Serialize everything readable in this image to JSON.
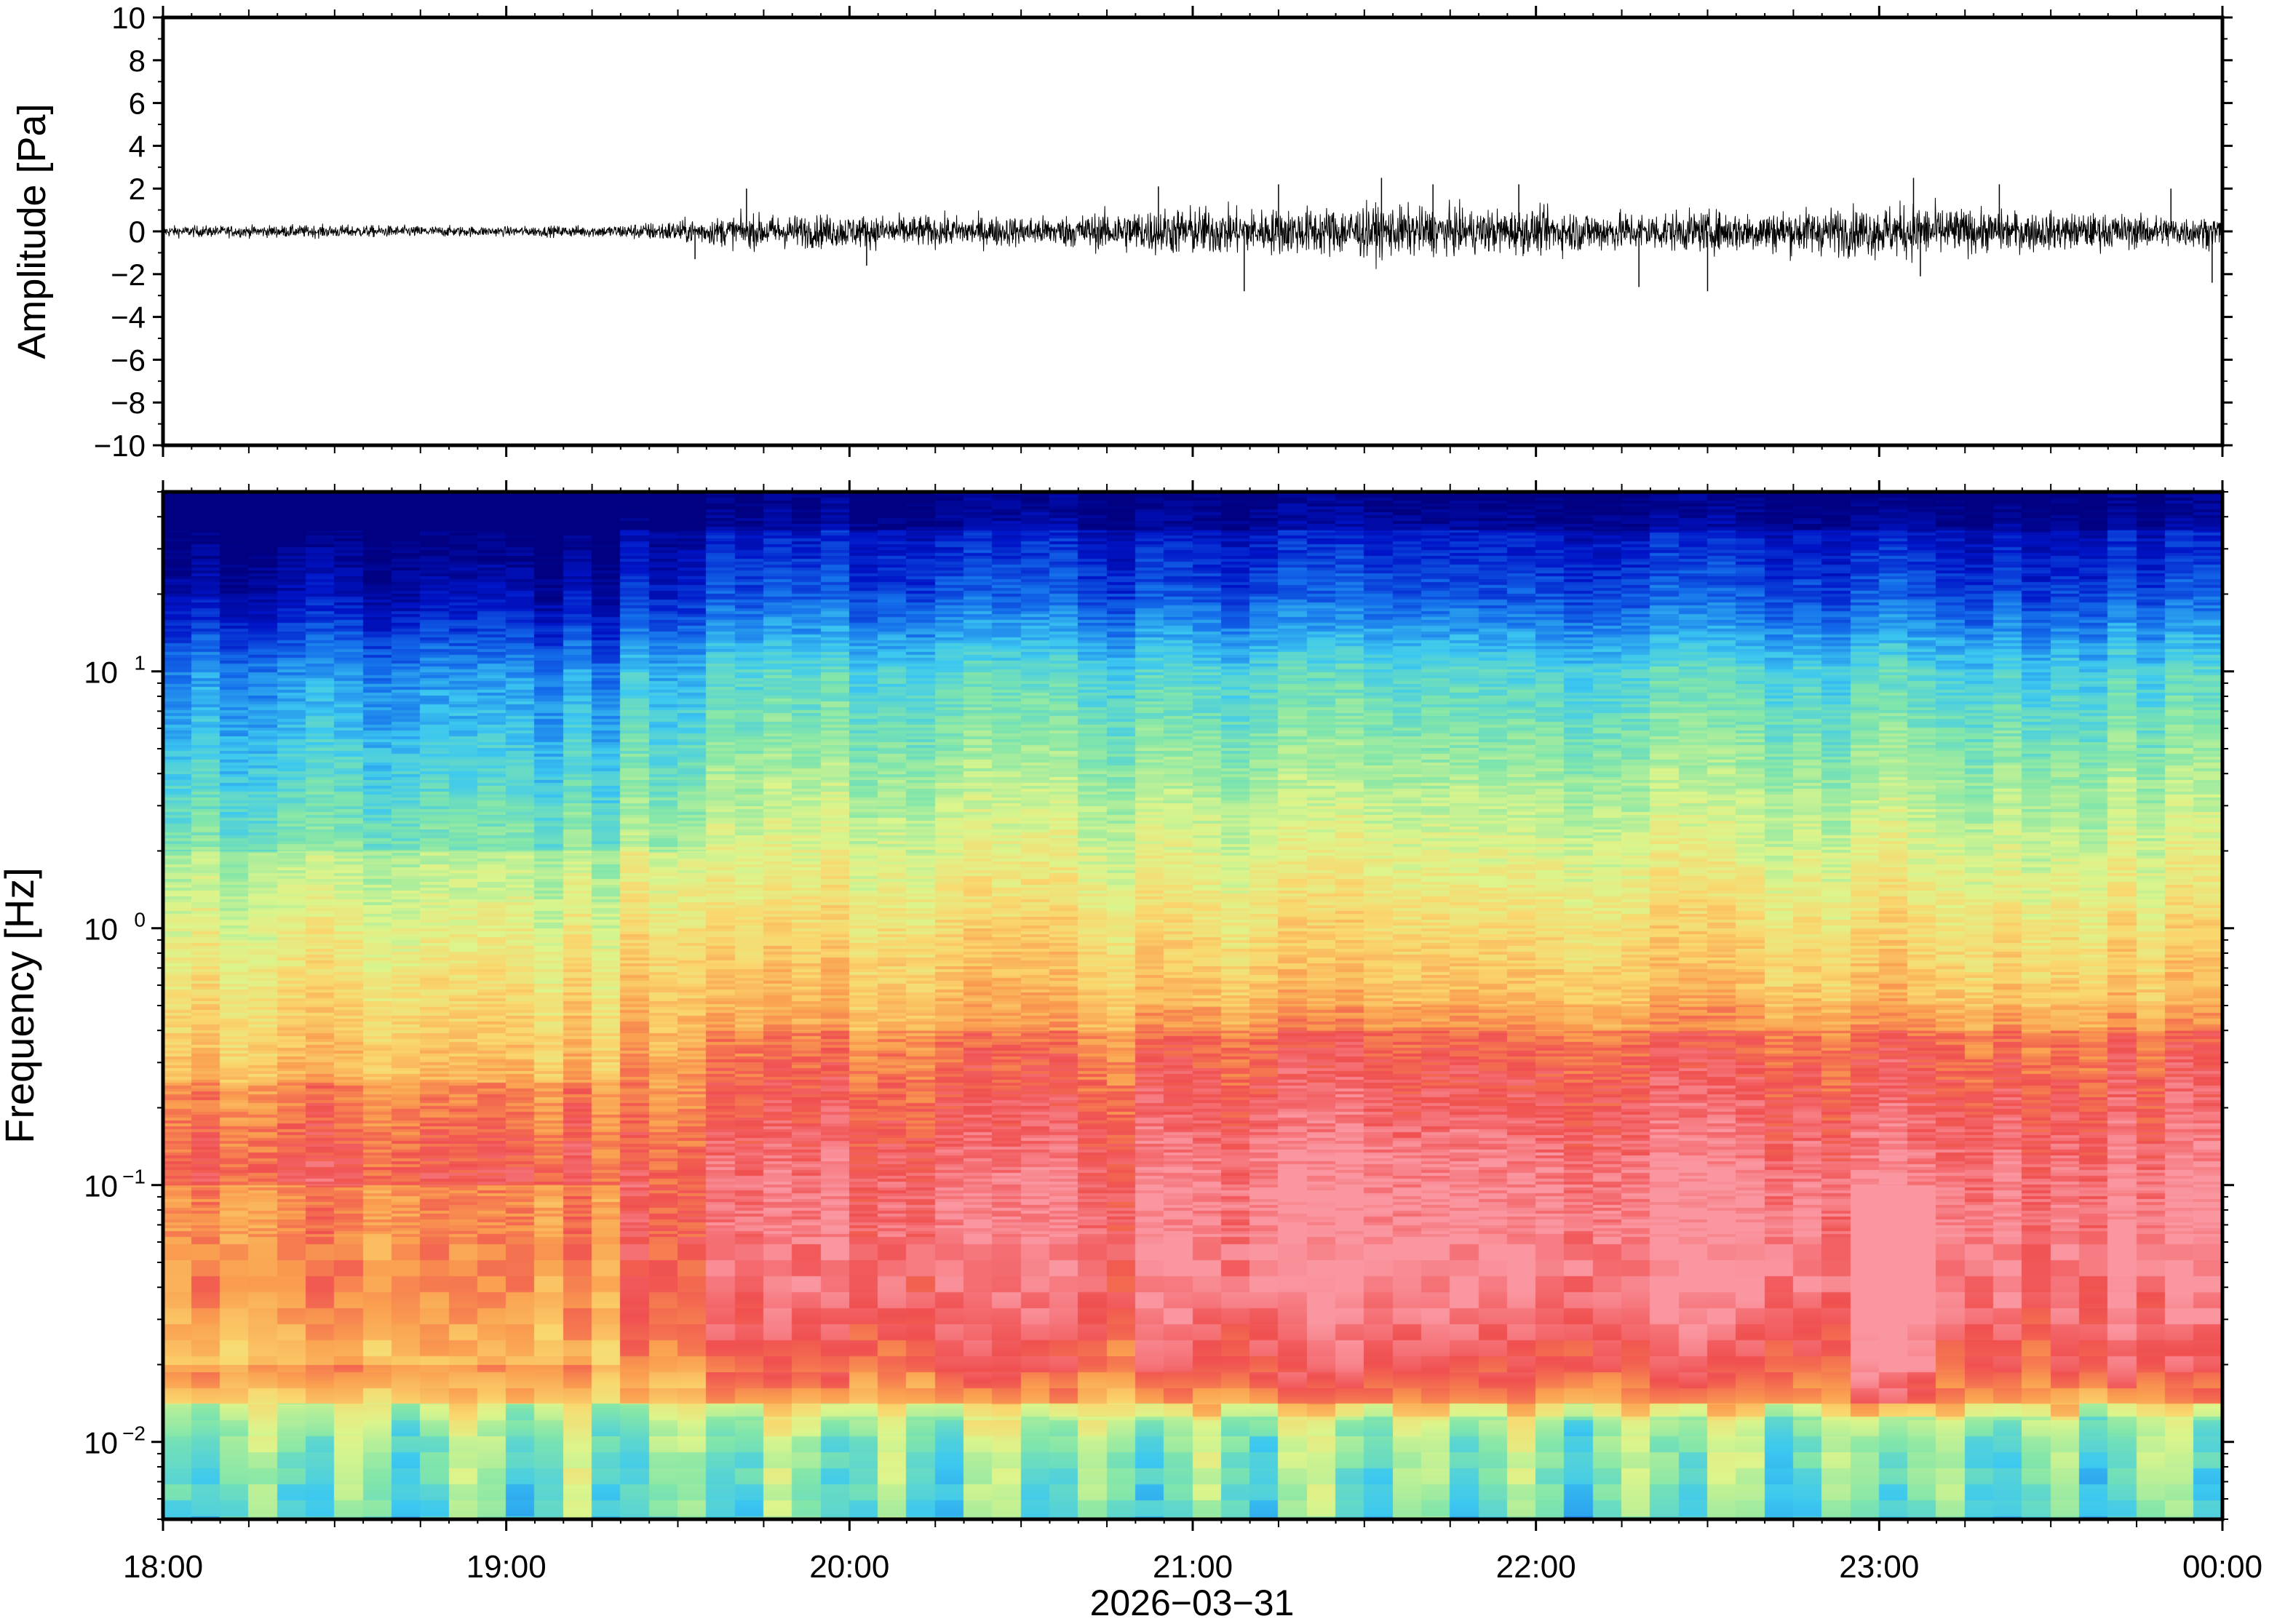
{
  "chart_data": [
    {
      "type": "line",
      "panel": "waveform",
      "ylabel": "Amplitude [Pa]",
      "ylim": [
        -10,
        10
      ],
      "yticks": [
        10,
        8,
        6,
        4,
        2,
        0,
        -2,
        -4,
        -6,
        -8,
        -10
      ],
      "ytick_labels": [
        "10",
        "8",
        "6",
        "4",
        "2",
        "0",
        "−2",
        "−4",
        "−6",
        "−8",
        "−10"
      ],
      "x_range_hours": [
        18,
        24
      ],
      "envelope": {
        "times": [
          18.0,
          18.5,
          19.0,
          19.3,
          19.5,
          19.7,
          20.0,
          20.3,
          20.6,
          20.8,
          21.0,
          21.2,
          21.5,
          21.8,
          22.0,
          22.3,
          22.6,
          22.9,
          23.1,
          23.3,
          23.6,
          24.0
        ],
        "amplitudes": [
          0.4,
          0.45,
          0.35,
          0.45,
          0.8,
          1.2,
          1.2,
          1.1,
          1.1,
          1.5,
          1.8,
          1.6,
          1.9,
          1.6,
          1.6,
          1.4,
          1.5,
          1.7,
          2.0,
          1.5,
          1.3,
          1.1
        ]
      },
      "peaks": [
        {
          "t": 19.7,
          "v": 2.0
        },
        {
          "t": 19.55,
          "v": -1.3
        },
        {
          "t": 20.05,
          "v": -1.6
        },
        {
          "t": 20.9,
          "v": 2.1
        },
        {
          "t": 21.15,
          "v": -2.8
        },
        {
          "t": 21.25,
          "v": 2.2
        },
        {
          "t": 21.55,
          "v": 2.5
        },
        {
          "t": 21.7,
          "v": 2.2
        },
        {
          "t": 21.95,
          "v": 2.2
        },
        {
          "t": 22.3,
          "v": -2.6
        },
        {
          "t": 22.5,
          "v": -2.8
        },
        {
          "t": 23.1,
          "v": 2.5
        },
        {
          "t": 23.12,
          "v": -2.1
        },
        {
          "t": 23.35,
          "v": 2.2
        },
        {
          "t": 23.85,
          "v": 2.0
        },
        {
          "t": 23.97,
          "v": -2.4
        }
      ]
    },
    {
      "type": "heatmap",
      "panel": "spectrogram",
      "ylabel": "Frequency [Hz]",
      "yscale": "log",
      "ylim_hz": [
        0.005,
        50
      ],
      "yticks_hz": [
        0.01,
        0.1,
        1,
        10
      ],
      "ytick_labels": [
        {
          "base": "10",
          "exp": "−2"
        },
        {
          "base": "10",
          "exp": "−1"
        },
        {
          "base": "10",
          "exp": "0"
        },
        {
          "base": "10",
          "exp": "1"
        }
      ],
      "colormap": "jet-like (blue low, red high)",
      "intensity_profile": {
        "log10_frequency": [
          -2.3,
          -2.0,
          -1.7,
          -1.4,
          -1.0,
          -0.5,
          0.0,
          0.5,
          1.0,
          1.3,
          1.7
        ],
        "relative_level_0_to_1": [
          0.55,
          0.62,
          0.82,
          0.9,
          0.9,
          0.8,
          0.68,
          0.55,
          0.4,
          0.2,
          0.05
        ]
      }
    }
  ],
  "x_axis": {
    "ticks": [
      "18:00",
      "19:00",
      "20:00",
      "21:00",
      "22:00",
      "23:00",
      "00:00"
    ],
    "label": "2026−03−31"
  }
}
